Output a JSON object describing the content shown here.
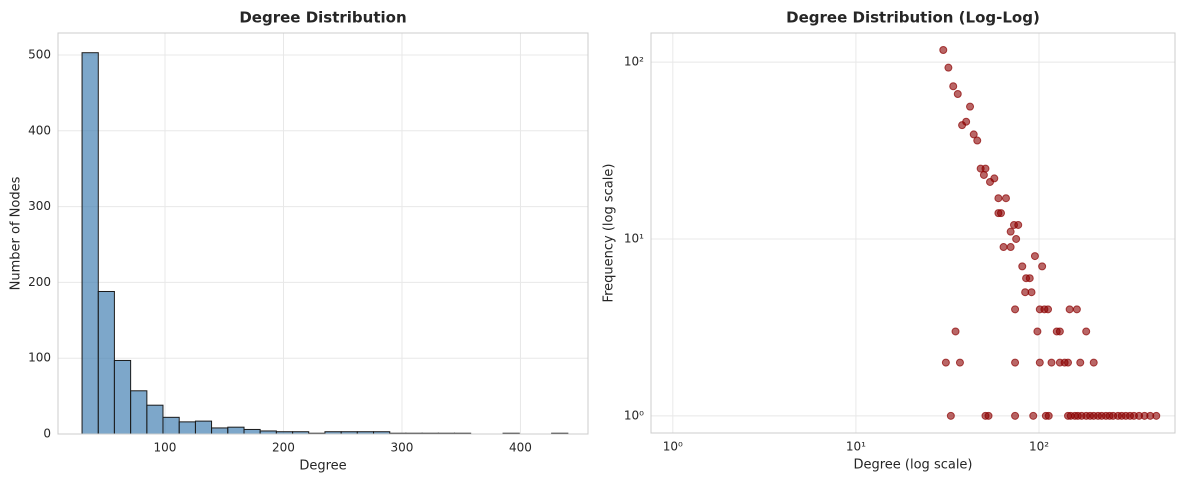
{
  "chart_data": [
    {
      "type": "histogram",
      "title": "Degree Distribution",
      "x_label": "Degree",
      "y_label": "Number of Nodes",
      "bins": [
        30,
        43.7,
        57.3,
        71,
        84.7,
        98.3,
        112,
        125.7,
        139.3,
        153,
        166.7,
        180.3,
        194,
        207.7,
        221.3,
        235,
        248.7,
        262.3,
        276,
        289.7,
        303.3,
        317,
        330.7,
        344.3,
        358,
        371.7,
        385.3,
        399,
        412.7,
        426.3,
        440
      ],
      "counts": [
        503,
        188,
        97,
        57,
        38,
        22,
        16,
        17,
        8,
        9,
        6,
        4,
        3,
        3,
        1,
        3,
        3,
        3,
        3,
        1,
        1,
        1,
        1,
        1,
        0,
        0,
        1,
        0,
        0,
        1
      ],
      "color": "#4682b4",
      "edge_color": "#1a1a1a",
      "xlim": [
        9.7,
        457
      ],
      "xticks": [
        100,
        200,
        300,
        400
      ],
      "ylim": [
        0,
        529
      ],
      "yticks": [
        0,
        100,
        200,
        300,
        400,
        500
      ],
      "grid": true
    },
    {
      "type": "scatter",
      "title": "Degree Distribution (Log-Log)",
      "x_label": "Degree (log scale)",
      "y_label": "Frequency (log scale)",
      "x": [
        30,
        32,
        34,
        36,
        38,
        40,
        42,
        44,
        46,
        48,
        51,
        50,
        54,
        57,
        60,
        60,
        62,
        66,
        70,
        73,
        77,
        64,
        70,
        75,
        95,
        81,
        89,
        85,
        104,
        84,
        91,
        74,
        101,
        107,
        112,
        147,
        161,
        98,
        125,
        130,
        35,
        181,
        31,
        37,
        74,
        101,
        117,
        130,
        138,
        144,
        168,
        199,
        33,
        51,
        53,
        74,
        93,
        109,
        113,
        144,
        149,
        157,
        163,
        171,
        181,
        190,
        199,
        210,
        220,
        232,
        243,
        254,
        270,
        283,
        298,
        314,
        330,
        352,
        377,
        405,
        437
      ],
      "values": [
        117,
        93,
        73,
        66,
        44,
        46,
        56,
        39,
        36,
        25,
        25,
        23,
        21,
        22,
        17,
        14,
        14,
        17,
        11,
        12,
        12,
        9,
        9,
        10,
        8,
        7,
        6,
        6,
        7,
        5,
        5,
        4,
        4,
        4,
        4,
        4,
        4,
        3,
        3,
        3,
        3,
        3,
        2,
        2,
        2,
        2,
        2,
        2,
        2,
        2,
        2,
        2,
        1,
        1,
        1,
        1,
        1,
        1,
        1,
        1,
        1,
        1,
        1,
        1,
        1,
        1,
        1,
        1,
        1,
        1,
        1,
        1,
        1,
        1,
        1,
        1,
        1,
        1,
        1,
        1,
        1
      ],
      "color": "#8b0000",
      "xscale": "log",
      "yscale": "log",
      "xlim": [
        0.76,
        553
      ],
      "xticks": [
        {
          "value": 1,
          "label": "10⁰"
        },
        {
          "value": 10,
          "label": "10¹"
        },
        {
          "value": 100,
          "label": "10²"
        }
      ],
      "ylim": [
        0.8,
        146
      ],
      "yticks": [
        {
          "value": 1,
          "label": "10⁰"
        },
        {
          "value": 10,
          "label": "10¹"
        },
        {
          "value": 100,
          "label": "10²"
        }
      ],
      "grid": true
    }
  ]
}
